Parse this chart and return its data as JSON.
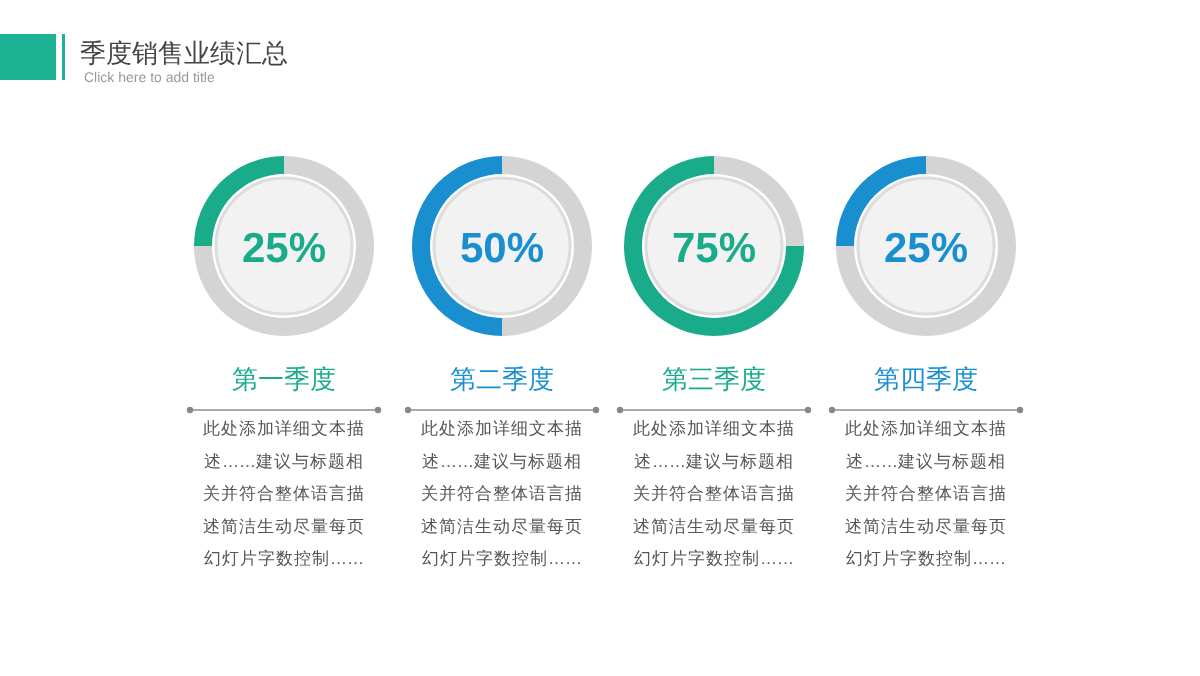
{
  "chart_data": [
    {
      "type": "other",
      "title": "季度销售业绩汇总",
      "subtitle": "Click here to add title"
    },
    {
      "type": "donut",
      "title": "第一季度",
      "categories": [
        null,
        null
      ],
      "values": [
        25,
        75
      ],
      "colors": [
        "#1aab8a",
        "#d4d4d4"
      ],
      "annotations": [
        "25%",
        "此处添加详细文本描",
        "述……建议与标题相",
        "关并符合整体语言描",
        "述简洁生动尽量每页",
        "幻灯片字数控制……"
      ]
    },
    {
      "type": "donut",
      "title": "第二季度",
      "categories": [
        null,
        null
      ],
      "values": [
        50,
        50
      ],
      "colors": [
        "#1a8fd0",
        "#d4d4d4"
      ],
      "annotations": [
        "50%",
        "此处添加详细文本描",
        "述……建议与标题相",
        "关并符合整体语言描",
        "述简洁生动尽量每页",
        "幻灯片字数控制……"
      ]
    },
    {
      "type": "donut",
      "title": "第三季度",
      "categories": [
        null,
        null
      ],
      "values": [
        75,
        25
      ],
      "colors": [
        "#1aab8a",
        "#d4d4d4"
      ],
      "annotations": [
        "75%",
        "此处添加详细文本描",
        "述……建议与标题相",
        "关并符合整体语言描",
        "述简洁生动尽量每页",
        "幻灯片字数控制……"
      ]
    },
    {
      "type": "donut",
      "title": "第四季度",
      "categories": [
        null,
        null
      ],
      "values": [
        25,
        75
      ],
      "colors": [
        "#1a8fd0",
        "#d4d4d4"
      ],
      "annotations": [
        "25%",
        "此处添加详细文本描",
        "述……建议与标题相",
        "关并符合整体语言描",
        "述简洁生动尽量每页",
        "幻灯片字数控制……"
      ]
    }
  ]
}
